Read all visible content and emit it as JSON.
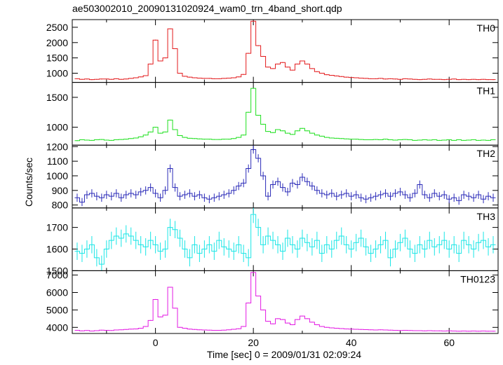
{
  "chart_data": {
    "type": "line",
    "title": "ae503002010_20090131020924_wam0_trn_4band_short.qdp",
    "xlabel": "Time [sec] 0 = 2009/01/31 02:09:24",
    "ylabel": "Counts/sec",
    "xlim": [
      -17,
      70
    ],
    "x_ticks": [
      0,
      20,
      40,
      60
    ],
    "x_tick_labels": [
      "0",
      "20",
      "40",
      "60"
    ],
    "panels": [
      {
        "name": "TH0",
        "color": "#e31a1c",
        "ylim": [
          700,
          2750
        ],
        "y_ticks": [
          1000,
          1500,
          2000,
          2500
        ],
        "y_tick_labels": [
          "1000",
          "1500",
          "2000",
          "2500"
        ],
        "error_bars": false,
        "x": [
          -16,
          -15,
          -14,
          -13,
          -12,
          -11,
          -10,
          -9,
          -8,
          -7,
          -6,
          -5,
          -4,
          -3,
          -2,
          -1,
          0,
          1,
          2,
          3,
          4,
          5,
          6,
          7,
          8,
          9,
          10,
          11,
          12,
          13,
          14,
          15,
          16,
          17,
          18,
          19,
          20,
          21,
          22,
          23,
          24,
          25,
          26,
          27,
          28,
          29,
          30,
          31,
          32,
          33,
          34,
          35,
          36,
          37,
          38,
          39,
          40,
          41,
          42,
          43,
          44,
          45,
          46,
          47,
          48,
          49,
          50,
          51,
          52,
          53,
          54,
          55,
          56,
          57,
          58,
          59,
          60,
          61,
          62,
          63,
          64,
          65,
          66,
          67,
          68,
          69
        ],
        "values": [
          820,
          800,
          810,
          790,
          800,
          810,
          810,
          800,
          820,
          800,
          810,
          830,
          850,
          880,
          920,
          1300,
          2080,
          1400,
          1500,
          2450,
          1800,
          1000,
          900,
          870,
          850,
          840,
          830,
          830,
          820,
          820,
          830,
          840,
          850,
          880,
          960,
          1650,
          2700,
          1900,
          1550,
          1200,
          1150,
          1300,
          1350,
          1200,
          1100,
          1300,
          1400,
          1300,
          1150,
          1050,
          1000,
          950,
          930,
          910,
          890,
          870,
          860,
          850,
          840,
          830,
          820,
          820,
          830,
          810,
          820,
          810,
          800,
          820,
          810,
          800,
          790,
          800,
          810,
          800,
          800,
          790,
          800,
          810,
          790,
          800,
          790,
          800,
          790,
          800,
          790,
          790
        ]
      },
      {
        "name": "TH1",
        "color": "#1fe01f",
        "ylim": [
          700,
          1750
        ],
        "y_ticks": [
          1000,
          1500
        ],
        "y_tick_labels": [
          "1000",
          "1500"
        ],
        "error_bars": false,
        "x": [
          -16,
          -15,
          -14,
          -13,
          -12,
          -11,
          -10,
          -9,
          -8,
          -7,
          -6,
          -5,
          -4,
          -3,
          -2,
          -1,
          0,
          1,
          2,
          3,
          4,
          5,
          6,
          7,
          8,
          9,
          10,
          11,
          12,
          13,
          14,
          15,
          16,
          17,
          18,
          19,
          20,
          21,
          22,
          23,
          24,
          25,
          26,
          27,
          28,
          29,
          30,
          31,
          32,
          33,
          34,
          35,
          36,
          37,
          38,
          39,
          40,
          41,
          42,
          43,
          44,
          45,
          46,
          47,
          48,
          49,
          50,
          51,
          52,
          53,
          54,
          55,
          56,
          57,
          58,
          59,
          60,
          61,
          62,
          63,
          64,
          65,
          66,
          67,
          68,
          69
        ],
        "values": [
          775,
          790,
          785,
          780,
          790,
          795,
          785,
          780,
          790,
          795,
          800,
          810,
          820,
          840,
          870,
          920,
          1000,
          900,
          920,
          1120,
          960,
          860,
          830,
          815,
          810,
          805,
          800,
          800,
          795,
          795,
          800,
          800,
          810,
          830,
          870,
          1250,
          1650,
          1200,
          1050,
          930,
          910,
          960,
          940,
          900,
          880,
          940,
          980,
          940,
          900,
          870,
          850,
          830,
          820,
          815,
          810,
          805,
          800,
          800,
          795,
          790,
          790,
          795,
          790,
          800,
          790,
          785,
          790,
          795,
          790,
          780,
          785,
          790,
          785,
          790,
          780,
          785,
          790,
          780,
          790,
          780,
          785,
          790,
          780,
          785,
          780,
          790
        ]
      },
      {
        "name": "TH2",
        "color": "#2a2ab8",
        "ylim": [
          780,
          1210
        ],
        "y_ticks": [
          800,
          900,
          1000,
          1100,
          1200
        ],
        "y_tick_labels": [
          "800",
          "900",
          "1000",
          "1100",
          "1200"
        ],
        "error_bars": true,
        "err": 28,
        "x": [
          -16,
          -15,
          -14,
          -13,
          -12,
          -11,
          -10,
          -9,
          -8,
          -7,
          -6,
          -5,
          -4,
          -3,
          -2,
          -1,
          0,
          1,
          2,
          3,
          4,
          5,
          6,
          7,
          8,
          9,
          10,
          11,
          12,
          13,
          14,
          15,
          16,
          17,
          18,
          19,
          20,
          21,
          22,
          23,
          24,
          25,
          26,
          27,
          28,
          29,
          30,
          31,
          32,
          33,
          34,
          35,
          36,
          37,
          38,
          39,
          40,
          41,
          42,
          43,
          44,
          45,
          46,
          47,
          48,
          49,
          50,
          51,
          52,
          53,
          54,
          55,
          56,
          57,
          58,
          59,
          60,
          61,
          62,
          63,
          64,
          65,
          66,
          67,
          68,
          69
        ],
        "values": [
          850,
          820,
          870,
          880,
          860,
          850,
          870,
          860,
          880,
          850,
          870,
          880,
          870,
          890,
          900,
          920,
          880,
          850,
          900,
          1050,
          920,
          860,
          870,
          880,
          860,
          870,
          850,
          840,
          850,
          860,
          870,
          880,
          900,
          930,
          950,
          1050,
          1180,
          1120,
          1000,
          860,
          940,
          960,
          920,
          890,
          950,
          940,
          990,
          960,
          930,
          900,
          880,
          870,
          880,
          860,
          870,
          880,
          860,
          870,
          850,
          840,
          850,
          860,
          870,
          880,
          860,
          880,
          890,
          870,
          850,
          880,
          940,
          870,
          850,
          880,
          860,
          870,
          840,
          850,
          830,
          870,
          860,
          850,
          870,
          840,
          860,
          850
        ]
      },
      {
        "name": "TH3",
        "color": "#19e6e6",
        "ylim": [
          1500,
          1790
        ],
        "y_ticks": [
          1500,
          1600,
          1700
        ],
        "y_tick_labels": [
          "1500",
          "1600",
          "1700"
        ],
        "error_bars": true,
        "err": 40,
        "x": [
          -16,
          -15,
          -14,
          -13,
          -12,
          -11,
          -10,
          -9,
          -8,
          -7,
          -6,
          -5,
          -4,
          -3,
          -2,
          -1,
          0,
          1,
          2,
          3,
          4,
          5,
          6,
          7,
          8,
          9,
          10,
          11,
          12,
          13,
          14,
          15,
          16,
          17,
          18,
          19,
          20,
          21,
          22,
          23,
          24,
          25,
          26,
          27,
          28,
          29,
          30,
          31,
          32,
          33,
          34,
          35,
          36,
          37,
          38,
          39,
          40,
          41,
          42,
          43,
          44,
          45,
          46,
          47,
          48,
          49,
          50,
          51,
          52,
          53,
          54,
          55,
          56,
          57,
          58,
          59,
          60,
          61,
          62,
          63,
          64,
          65,
          66,
          67,
          68,
          69
        ],
        "values": [
          1590,
          1580,
          1600,
          1620,
          1560,
          1530,
          1600,
          1640,
          1660,
          1650,
          1670,
          1660,
          1640,
          1620,
          1610,
          1640,
          1620,
          1590,
          1600,
          1700,
          1690,
          1650,
          1600,
          1560,
          1620,
          1580,
          1600,
          1620,
          1590,
          1640,
          1610,
          1600,
          1590,
          1620,
          1580,
          1560,
          1760,
          1700,
          1620,
          1660,
          1640,
          1620,
          1590,
          1650,
          1620,
          1600,
          1650,
          1630,
          1610,
          1640,
          1580,
          1620,
          1600,
          1640,
          1660,
          1620,
          1600,
          1630,
          1650,
          1610,
          1580,
          1600,
          1620,
          1640,
          1560,
          1600,
          1630,
          1650,
          1600,
          1580,
          1620,
          1600,
          1640,
          1610,
          1620,
          1640,
          1600,
          1620,
          1580,
          1640,
          1620,
          1600,
          1630,
          1640,
          1610,
          1620
        ]
      },
      {
        "name": "TH0123",
        "color": "#e31ae3",
        "ylim": [
          3650,
          7250
        ],
        "y_ticks": [
          4000,
          5000,
          6000,
          7000
        ],
        "y_tick_labels": [
          "4000",
          "5000",
          "6000",
          "7000"
        ],
        "error_bars": false,
        "x": [
          -16,
          -15,
          -14,
          -13,
          -12,
          -11,
          -10,
          -9,
          -8,
          -7,
          -6,
          -5,
          -4,
          -3,
          -2,
          -1,
          0,
          1,
          2,
          3,
          4,
          5,
          6,
          7,
          8,
          9,
          10,
          11,
          12,
          13,
          14,
          15,
          16,
          17,
          18,
          19,
          20,
          21,
          22,
          23,
          24,
          25,
          26,
          27,
          28,
          29,
          30,
          31,
          32,
          33,
          34,
          35,
          36,
          37,
          38,
          39,
          40,
          41,
          42,
          43,
          44,
          45,
          46,
          47,
          48,
          49,
          50,
          51,
          52,
          53,
          54,
          55,
          56,
          57,
          58,
          59,
          60,
          61,
          62,
          63,
          64,
          65,
          66,
          67,
          68,
          69
        ],
        "values": [
          3830,
          3800,
          3820,
          3790,
          3810,
          3840,
          3830,
          3820,
          3850,
          3860,
          3880,
          3900,
          3910,
          3950,
          4050,
          4400,
          5600,
          4600,
          4700,
          6300,
          5100,
          4000,
          3950,
          3900,
          3880,
          3860,
          3850,
          3840,
          3830,
          3830,
          3840,
          3860,
          3890,
          3920,
          4050,
          5400,
          7150,
          5800,
          5000,
          4350,
          4200,
          4500,
          4450,
          4250,
          4150,
          4450,
          4650,
          4500,
          4300,
          4150,
          4050,
          4000,
          3970,
          3950,
          3930,
          3910,
          3900,
          3890,
          3880,
          3870,
          3860,
          3850,
          3860,
          3850,
          3840,
          3830,
          3820,
          3830,
          3820,
          3810,
          3810,
          3800,
          3810,
          3800,
          3800,
          3790,
          3800,
          3790,
          3780,
          3790,
          3780,
          3790,
          3780,
          3790,
          3780,
          3780
        ]
      }
    ]
  }
}
